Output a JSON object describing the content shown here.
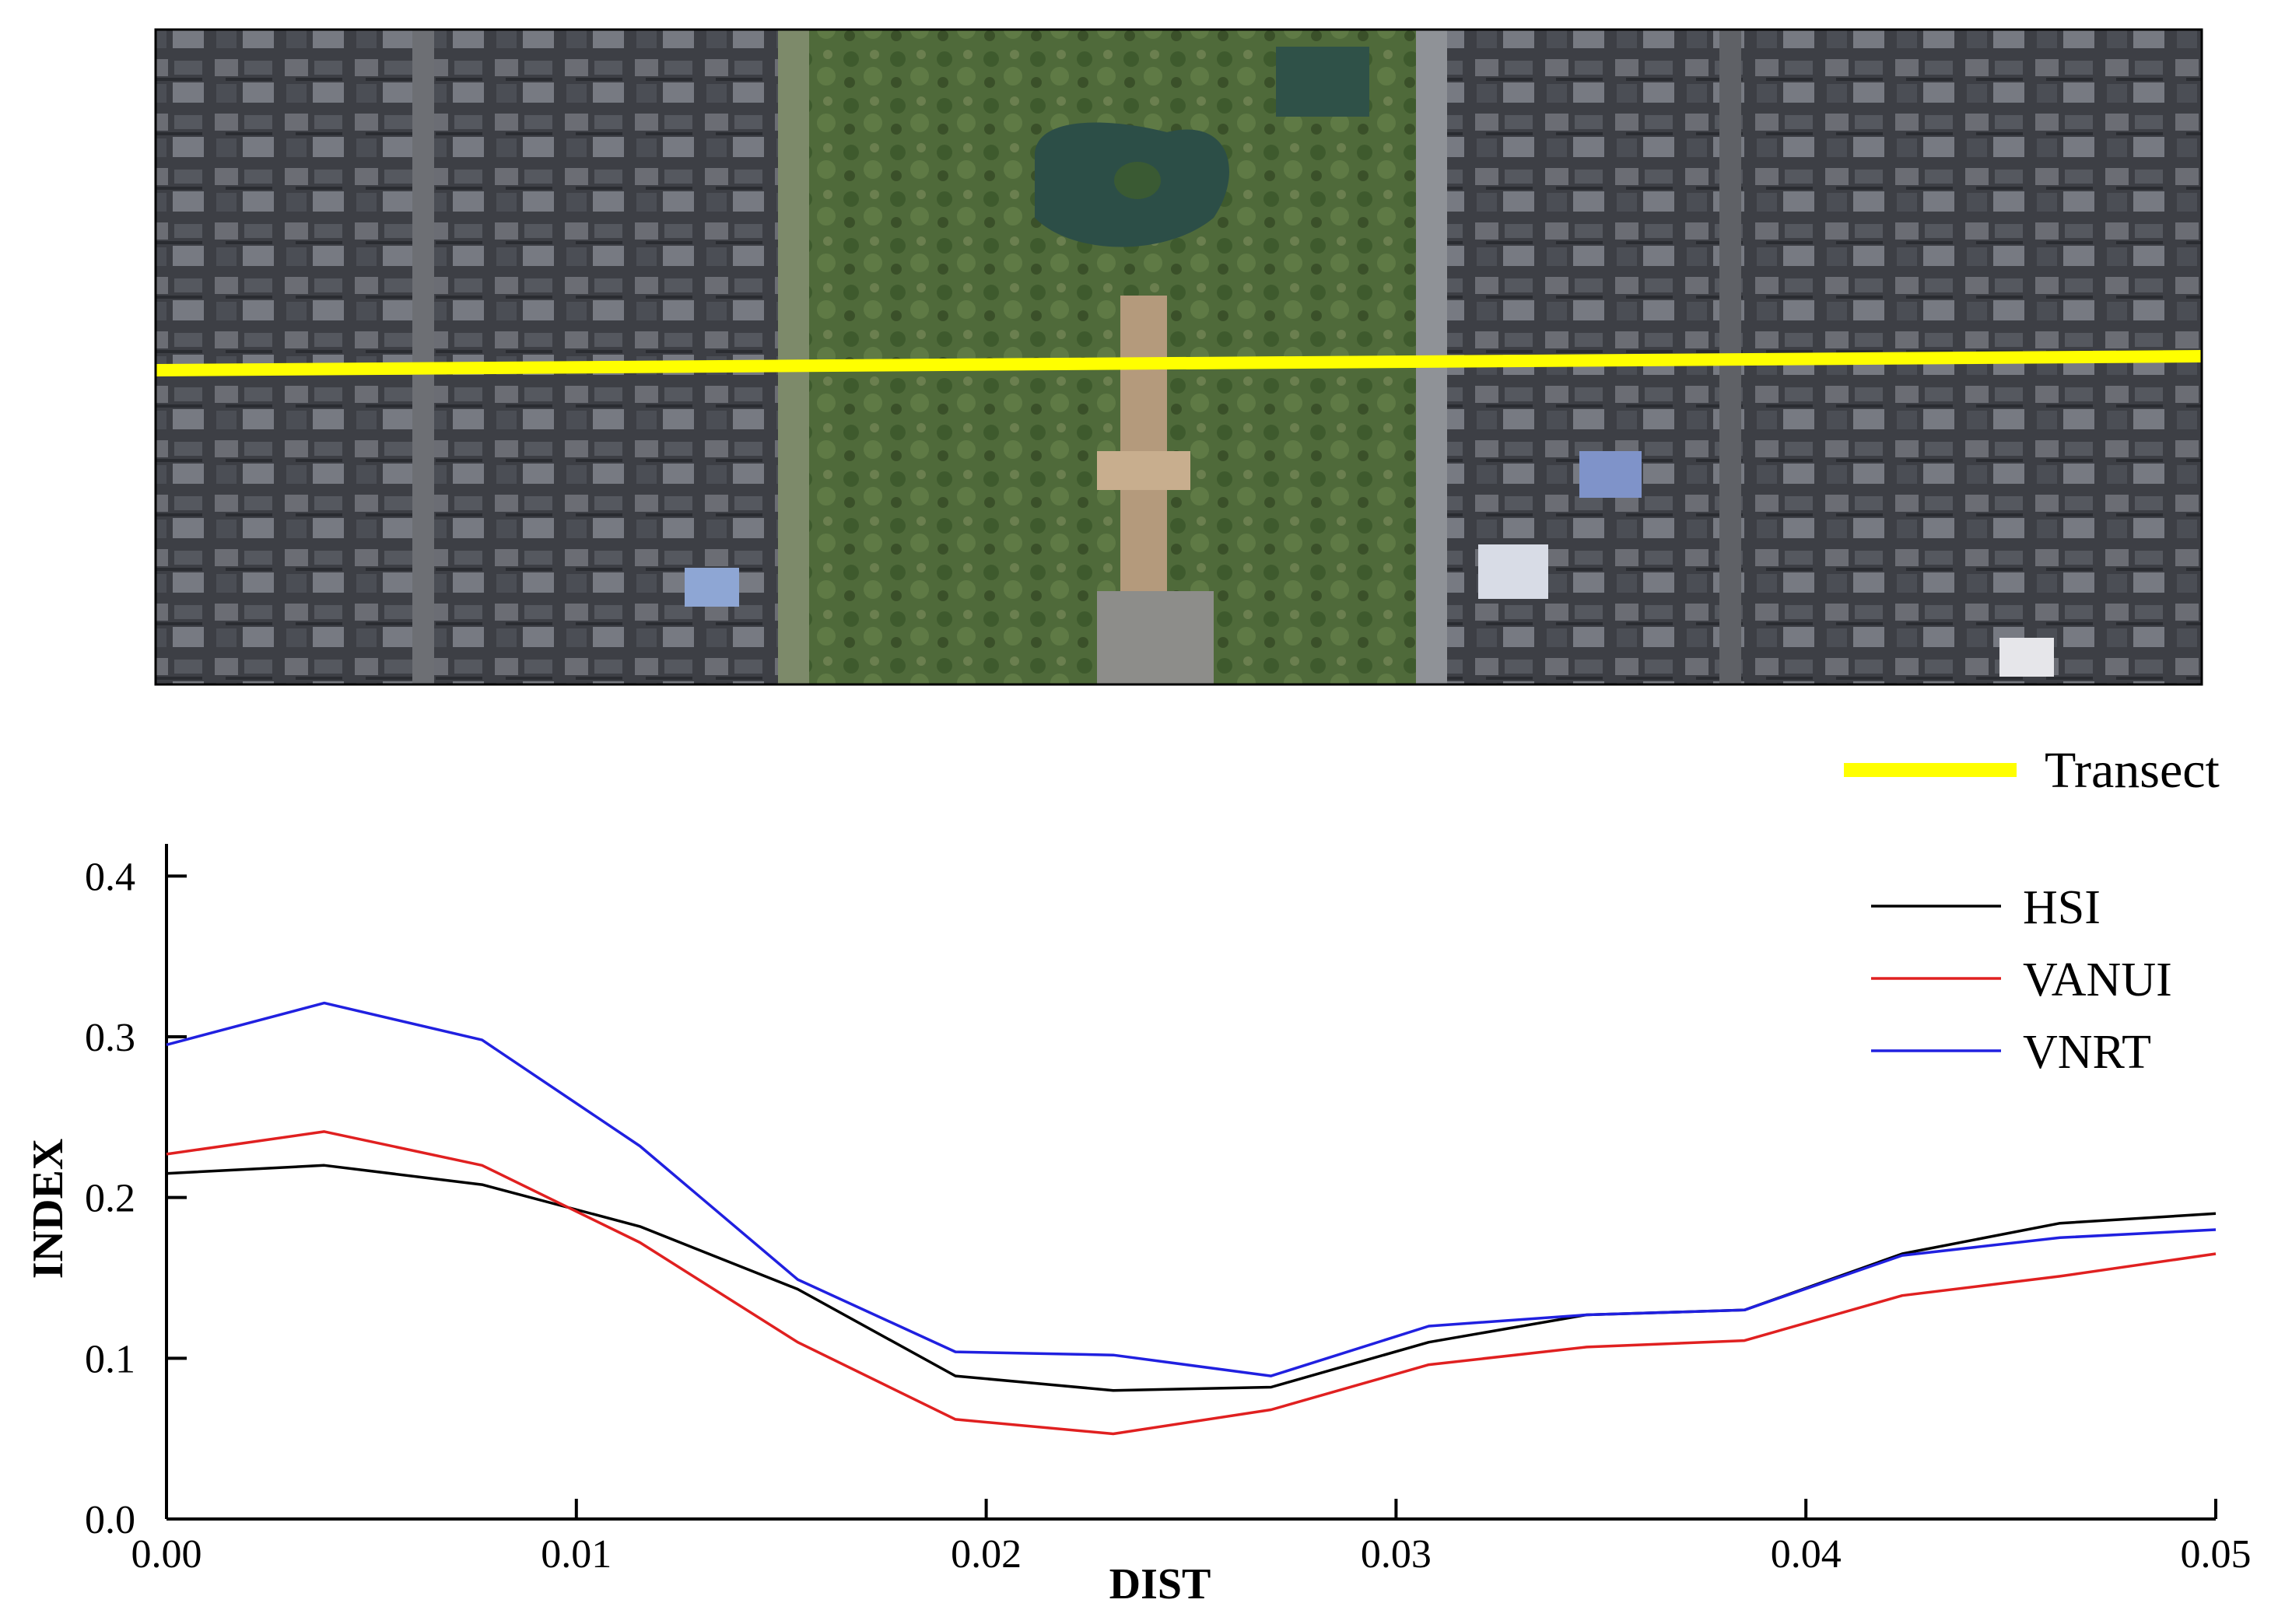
{
  "map_panel": {
    "image_description_name": "satellite-image",
    "transect_color": "#ffff00",
    "legend_label": "Transect"
  },
  "chart_data": {
    "type": "line",
    "title": "",
    "xlabel": "DIST",
    "ylabel": "INDEX",
    "xlim": [
      0.0,
      0.05
    ],
    "ylim": [
      0.0,
      0.42
    ],
    "xticks": [
      "0.00",
      "0.01",
      "0.02",
      "0.03",
      "0.04",
      "0.05"
    ],
    "yticks": [
      "0.0",
      "0.1",
      "0.2",
      "0.3",
      "0.4"
    ],
    "legend_position": "top-right",
    "grid": false,
    "x": [
      0.0,
      0.00385,
      0.0077,
      0.01155,
      0.0154,
      0.01925,
      0.0231,
      0.02695,
      0.0308,
      0.03465,
      0.0385,
      0.04235,
      0.0462,
      0.05
    ],
    "series": [
      {
        "name": "HSI",
        "color": "#000000",
        "values": [
          0.215,
          0.22,
          0.208,
          0.182,
          0.143,
          0.089,
          0.08,
          0.082,
          0.11,
          0.127,
          0.13,
          0.165,
          0.184,
          0.19
        ]
      },
      {
        "name": "VANUI",
        "color": "#e02020",
        "values": [
          0.227,
          0.241,
          0.22,
          0.172,
          0.11,
          0.062,
          0.053,
          0.068,
          0.096,
          0.107,
          0.111,
          0.139,
          0.151,
          0.165
        ]
      },
      {
        "name": "VNRT",
        "color": "#2020e0",
        "values": [
          0.295,
          0.321,
          0.298,
          0.232,
          0.149,
          0.104,
          0.102,
          0.089,
          0.12,
          0.127,
          0.13,
          0.164,
          0.175,
          0.18
        ]
      }
    ]
  }
}
